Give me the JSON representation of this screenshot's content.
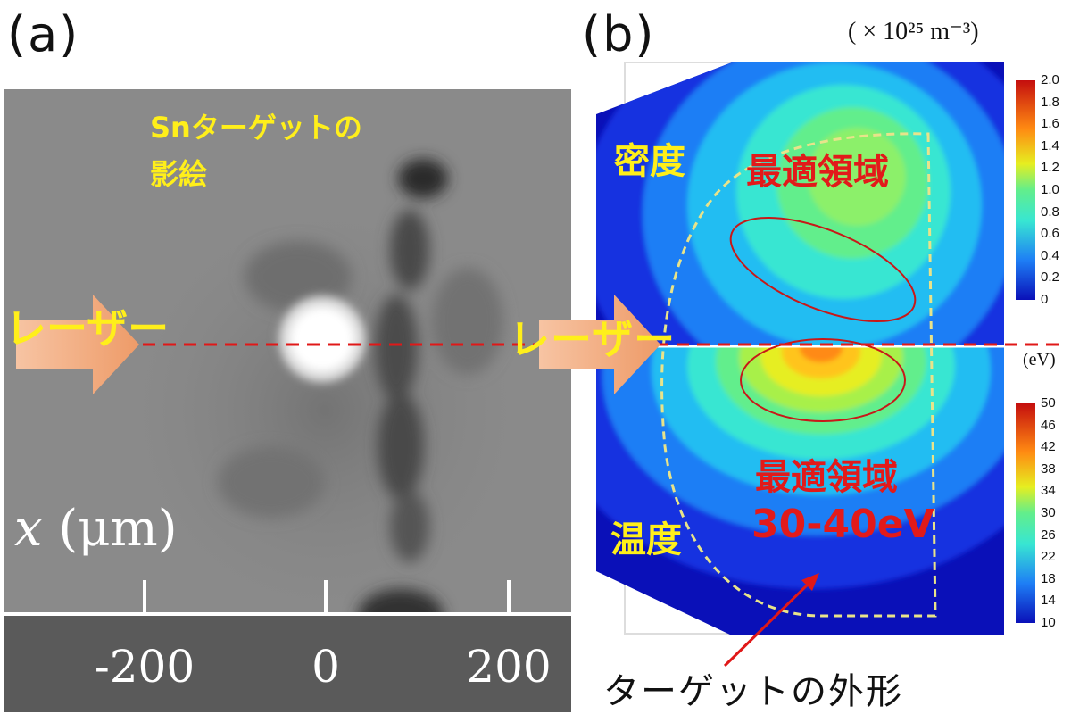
{
  "panels": {
    "a_label": "(a)",
    "b_label": "(b)"
  },
  "panel_a": {
    "shadow_label_line1": "Snターゲットの",
    "shadow_label_line2": "影絵",
    "laser_label": "レーザー",
    "axis_variable": "x",
    "axis_unit": " (μm)",
    "ticks": [
      "-200",
      "0",
      "200"
    ]
  },
  "panel_b": {
    "laser_label": "レーザー",
    "density_unit": "( × 10²⁵ m⁻³)",
    "temperature_unit": "(eV)",
    "density_label": "密度",
    "temperature_label": "温度",
    "optimal_region_top": "最適領域",
    "optimal_region_bottom": "最適領域",
    "optimal_range": "30-40eV",
    "target_outline_label": "ターゲットの外形",
    "density_colorbar_ticks": [
      "2.0",
      "1.8",
      "1.6",
      "1.4",
      "1.2",
      "1.0",
      "0.8",
      "0.6",
      "0.4",
      "0.2",
      "0"
    ],
    "temperature_colorbar_ticks": [
      "50",
      "46",
      "42",
      "38",
      "34",
      "30",
      "26",
      "22",
      "18",
      "14",
      "10"
    ]
  },
  "colors": {
    "highlight_yellow": "#ffef1a",
    "highlight_red": "#e21a1a",
    "laser_arrow": "#f2a878",
    "colormap": [
      "#0a10b8",
      "#1a3cf0",
      "#1e7ef5",
      "#22bdf2",
      "#38e6d2",
      "#62ee8c",
      "#a8f04a",
      "#e6ee20",
      "#ffc41a",
      "#ff8a12",
      "#f23a10",
      "#c40e0e"
    ]
  }
}
